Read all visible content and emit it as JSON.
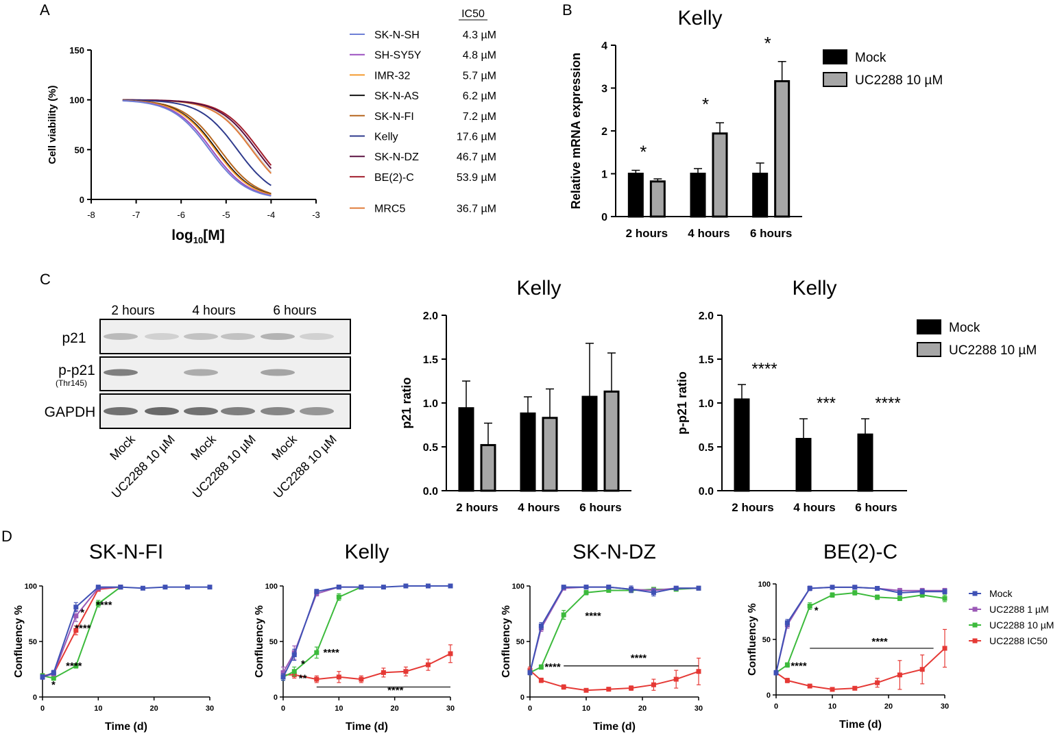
{
  "panel_labels": {
    "a": "A",
    "b": "B",
    "c": "C",
    "d": "D"
  },
  "colors": {
    "mock": "#000000",
    "uc": "#a6a6a6",
    "wb_bg": "#efefef",
    "wb_band": "#5a5a5a"
  },
  "chart_data": [
    {
      "id": "A",
      "type": "line",
      "xlabel_base": "log",
      "xlabel_sub": "10",
      "xlabel_tail": "[M]",
      "ylabel": "Cell viability (%)",
      "xlim": [
        -8,
        -3
      ],
      "ylim": [
        0,
        150
      ],
      "xticks": [
        "-8",
        "-7",
        "-6",
        "-5",
        "-4",
        "-3"
      ],
      "yticks": [
        "0",
        "50",
        "100",
        "150"
      ],
      "x_range": [
        -7.3,
        -4
      ],
      "legend_header": "IC50",
      "series": [
        {
          "name": "SK-N-SH",
          "ic50": "4.3 µM",
          "log_ic50": -5.37,
          "color": "#6d7fd6"
        },
        {
          "name": "SH-SY5Y",
          "ic50": "4.8 µM",
          "log_ic50": -5.32,
          "color": "#9b4fbf"
        },
        {
          "name": "IMR-32",
          "ic50": "5.7 µM",
          "log_ic50": -5.24,
          "color": "#f39a2e"
        },
        {
          "name": "SK-N-AS",
          "ic50": "6.2 µM",
          "log_ic50": -5.21,
          "color": "#111111"
        },
        {
          "name": "SK-N-FI",
          "ic50": "7.2 µM",
          "log_ic50": -5.14,
          "color": "#b5651d"
        },
        {
          "name": "Kelly",
          "ic50": "17.6 µM",
          "log_ic50": -4.75,
          "color": "#2e3a8c"
        },
        {
          "name": "SK-N-DZ",
          "ic50": "46.7 µM",
          "log_ic50": -4.33,
          "color": "#5a1040"
        },
        {
          "name": "BE(2)-C",
          "ic50": "53.9 µM",
          "log_ic50": -4.27,
          "color": "#a11d2b"
        },
        {
          "name": "MRC5",
          "ic50": "36.7 µM",
          "log_ic50": -4.43,
          "color": "#e07b39",
          "gap_before": true
        }
      ],
      "extra_curve": {
        "log_ic50": -4.4,
        "color": "#d4d4d4"
      }
    },
    {
      "id": "B",
      "type": "bar",
      "title": "Kelly",
      "ylabel": "Relative mRNA expression",
      "ylim": [
        0,
        4
      ],
      "yticks": [
        "0",
        "1",
        "2",
        "3",
        "4"
      ],
      "categories": [
        "2 hours",
        "4 hours",
        "6 hours"
      ],
      "series": [
        {
          "name": "Mock",
          "values": [
            1.0,
            1.0,
            1.0
          ],
          "err": [
            0.08,
            0.12,
            0.25
          ]
        },
        {
          "name": "UC2288 10 µM",
          "values": [
            0.82,
            1.94,
            3.16
          ],
          "err": [
            0.06,
            0.25,
            0.46
          ]
        }
      ],
      "annotations": [
        "*",
        "*",
        "*"
      ]
    },
    {
      "id": "C1",
      "type": "bar",
      "title": "Kelly",
      "ylabel": "p21 ratio",
      "ylim": [
        0,
        2.0
      ],
      "yticks": [
        "0.0",
        "0.5",
        "1.0",
        "1.5",
        "2.0"
      ],
      "categories": [
        "2 hours",
        "4 hours",
        "6 hours"
      ],
      "series": [
        {
          "name": "Mock",
          "values": [
            0.94,
            0.88,
            1.07
          ],
          "err": [
            0.31,
            0.19,
            0.61
          ]
        },
        {
          "name": "UC2288 10 µM",
          "values": [
            0.52,
            0.83,
            1.13
          ],
          "err": [
            0.25,
            0.33,
            0.44
          ]
        }
      ]
    },
    {
      "id": "C2",
      "type": "bar",
      "title": "Kelly",
      "ylabel": "p-p21 ratio",
      "ylim": [
        0,
        2.0
      ],
      "yticks": [
        "0.0",
        "0.5",
        "1.0",
        "1.5",
        "2.0"
      ],
      "categories": [
        "2 hours",
        "4 hours",
        "6 hours"
      ],
      "series": [
        {
          "name": "Mock",
          "values": [
            1.04,
            0.59,
            0.64
          ],
          "err": [
            0.17,
            0.23,
            0.18
          ]
        },
        {
          "name": "UC2288 10 µM",
          "values": [
            0,
            0,
            0
          ],
          "err": [
            0,
            0,
            0
          ]
        }
      ],
      "annotations": [
        "****",
        "***",
        "****"
      ]
    },
    {
      "id": "D1",
      "type": "line",
      "title": "SK-N-FI",
      "xlabel": "Time (d)",
      "ylabel": "Confluency %",
      "xlim": [
        0,
        30
      ],
      "ylim": [
        0,
        100
      ],
      "xticks": [
        "0",
        "10",
        "20",
        "30"
      ],
      "yticks": [
        "0",
        "50",
        "100"
      ],
      "series": [
        {
          "name": "Mock",
          "x": [
            0,
            2,
            6,
            10,
            14,
            18,
            22,
            26,
            30
          ],
          "y": [
            18,
            22,
            81,
            99,
            99,
            98,
            99,
            99,
            99
          ],
          "err": [
            2,
            2,
            4,
            1,
            1,
            1,
            1,
            1,
            1
          ]
        },
        {
          "name": "UC2288   1 µM",
          "x": [
            0,
            2,
            6,
            10,
            14
          ],
          "y": [
            18,
            21,
            73,
            98,
            99
          ],
          "err": [
            2,
            2,
            5,
            1,
            1
          ]
        },
        {
          "name": "UC2288  10 µM",
          "x": [
            0,
            2,
            6,
            10,
            14
          ],
          "y": [
            19,
            17,
            28,
            84,
            99
          ],
          "err": [
            2,
            2,
            2,
            3,
            1
          ]
        },
        {
          "name": "UC2288   IC50",
          "x": [
            0,
            2,
            6,
            10,
            14
          ],
          "y": [
            19,
            21,
            60,
            97,
            99
          ],
          "err": [
            2,
            2,
            4,
            1,
            1
          ]
        }
      ],
      "annotations": [
        {
          "text": "*",
          "x": 1.6,
          "y": 8
        },
        {
          "text": "*",
          "x": 6.8,
          "y": 73
        },
        {
          "text": "****",
          "x": 9.6,
          "y": 80
        },
        {
          "text": "****",
          "x": 5.8,
          "y": 59
        },
        {
          "text": "****",
          "x": 4.2,
          "y": 25
        }
      ]
    },
    {
      "id": "D2",
      "type": "line",
      "title": "Kelly",
      "xlabel": "Time (d)",
      "ylabel": "Confluency %",
      "xlim": [
        0,
        30
      ],
      "ylim": [
        0,
        100
      ],
      "xticks": [
        "0",
        "10",
        "20",
        "30"
      ],
      "yticks": [
        "0",
        "50",
        "100"
      ],
      "series": [
        {
          "name": "Mock",
          "x": [
            0,
            2,
            6,
            10,
            14,
            18,
            22,
            26,
            30
          ],
          "y": [
            18,
            38,
            95,
            99,
            99,
            99,
            100,
            100,
            100
          ],
          "err": [
            3,
            5,
            2,
            1,
            1,
            1,
            1,
            1,
            1
          ]
        },
        {
          "name": "UC2288   1 µM",
          "x": [
            0,
            2,
            6,
            10,
            14
          ],
          "y": [
            22,
            40,
            93,
            99,
            99
          ],
          "err": [
            5,
            6,
            2,
            1,
            1
          ]
        },
        {
          "name": "UC2288  10 µM",
          "x": [
            0,
            2,
            6,
            10,
            14
          ],
          "y": [
            18,
            23,
            40,
            90,
            99
          ],
          "err": [
            3,
            4,
            5,
            3,
            1
          ]
        },
        {
          "name": "UC2288   IC50",
          "x": [
            0,
            2,
            6,
            10,
            14,
            18,
            22,
            26,
            30
          ],
          "y": [
            20,
            20,
            16,
            18,
            16,
            22,
            23,
            29,
            39
          ],
          "err": [
            3,
            3,
            3,
            5,
            3,
            4,
            4,
            5,
            8
          ]
        }
      ],
      "annotations": [
        {
          "text": "****",
          "x": 7.2,
          "y": 37
        },
        {
          "text": "*",
          "x": 3.2,
          "y": 27
        },
        {
          "text": "**",
          "x": 2.8,
          "y": 14
        },
        {
          "text": "****",
          "x": 18.7,
          "y": 3
        }
      ],
      "sig_line": {
        "x1": 6,
        "x2": 30,
        "y": 9
      }
    },
    {
      "id": "D3",
      "type": "line",
      "title": "SK-N-DZ",
      "xlabel": "Time (d)",
      "ylabel": "Confluency %",
      "xlim": [
        0,
        30
      ],
      "ylim": [
        0,
        100
      ],
      "xticks": [
        "0",
        "10",
        "20",
        "30"
      ],
      "yticks": [
        "0",
        "50",
        "100"
      ],
      "series": [
        {
          "name": "Mock",
          "x": [
            0,
            2,
            6,
            10,
            14,
            18,
            22,
            26,
            30
          ],
          "y": [
            22,
            64,
            99,
            99,
            99,
            97,
            94,
            98,
            98
          ],
          "err": [
            2,
            3,
            1,
            1,
            1,
            3,
            3,
            1,
            1
          ]
        },
        {
          "name": "UC2288   1 µM",
          "x": [
            0,
            2,
            6,
            10,
            14,
            18,
            22,
            26,
            30
          ],
          "y": [
            22,
            62,
            98,
            99,
            99,
            97,
            96,
            98,
            98
          ],
          "err": [
            2,
            3,
            1,
            1,
            1,
            2,
            2,
            1,
            1
          ]
        },
        {
          "name": "UC2288  10 µM",
          "x": [
            0,
            2,
            6,
            10,
            14,
            18,
            22,
            26,
            30
          ],
          "y": [
            22,
            27,
            74,
            94,
            96,
            96,
            97,
            97,
            98
          ],
          "err": [
            2,
            2,
            4,
            2,
            1,
            1,
            1,
            1,
            1
          ]
        },
        {
          "name": "UC2288   IC50",
          "x": [
            0,
            2,
            6,
            10,
            14,
            18,
            22,
            26,
            30
          ],
          "y": [
            24,
            15,
            9,
            6,
            7,
            8,
            11,
            16,
            23
          ],
          "err": [
            3,
            2,
            2,
            1,
            1,
            2,
            5,
            8,
            12
          ]
        }
      ],
      "annotations": [
        {
          "text": "****",
          "x": 9.8,
          "y": 70
        },
        {
          "text": "****",
          "x": 2.6,
          "y": 24
        },
        {
          "text": "****",
          "x": 17.9,
          "y": 32
        }
      ],
      "sig_line": {
        "x1": 6,
        "x2": 30,
        "y": 28
      }
    },
    {
      "id": "D4",
      "type": "line",
      "title": "BE(2)-C",
      "xlabel": "Time (d)",
      "ylabel": "Confluency %",
      "xlim": [
        0,
        30
      ],
      "ylim": [
        0,
        100
      ],
      "xticks": [
        "0",
        "10",
        "20",
        "30"
      ],
      "yticks": [
        "0",
        "50",
        "100"
      ],
      "series": [
        {
          "name": "Mock",
          "x": [
            0,
            2,
            6,
            10,
            14,
            18,
            22,
            26,
            30
          ],
          "y": [
            20,
            65,
            96,
            97,
            97,
            96,
            92,
            93,
            93
          ],
          "err": [
            2,
            3,
            2,
            1,
            1,
            1,
            2,
            2,
            2
          ]
        },
        {
          "name": "UC2288   1 µM",
          "x": [
            0,
            2,
            6,
            10,
            14,
            18,
            22,
            26,
            30
          ],
          "y": [
            20,
            63,
            96,
            97,
            97,
            96,
            94,
            94,
            94
          ],
          "err": [
            2,
            3,
            2,
            1,
            1,
            1,
            2,
            2,
            2
          ]
        },
        {
          "name": "UC2288  10 µM",
          "x": [
            0,
            2,
            6,
            10,
            14,
            18,
            22,
            26,
            30
          ],
          "y": [
            20,
            27,
            80,
            90,
            92,
            88,
            87,
            90,
            87
          ],
          "err": [
            2,
            2,
            3,
            2,
            2,
            2,
            2,
            2,
            3
          ]
        },
        {
          "name": "UC2288   IC50",
          "x": [
            0,
            2,
            6,
            10,
            14,
            18,
            22,
            26,
            30
          ],
          "y": [
            20,
            13,
            8,
            5,
            6,
            11,
            18,
            23,
            42
          ],
          "err": [
            2,
            2,
            1,
            1,
            1,
            4,
            13,
            13,
            17
          ]
        }
      ],
      "annotations": [
        {
          "text": "*",
          "x": 6.8,
          "y": 73
        },
        {
          "text": "****",
          "x": 2.6,
          "y": 23
        },
        {
          "text": "****",
          "x": 17,
          "y": 45
        }
      ],
      "sig_line": {
        "x1": 6,
        "x2": 28,
        "y": 42
      }
    }
  ],
  "legend_b": {
    "mock": "Mock",
    "uc": "UC2288 10 µM"
  },
  "legend_c": {
    "mock": "Mock",
    "uc": "UC2288 10 µM"
  },
  "legend_d": [
    {
      "name": "Mock",
      "color": "#3f51b5"
    },
    {
      "name": "UC2288   1 µM",
      "color": "#9b59b6"
    },
    {
      "name": "UC2288  10 µM",
      "color": "#3cba3c"
    },
    {
      "name": "UC2288   IC50",
      "color": "#e53935"
    }
  ],
  "western_blot": {
    "time_labels": [
      "2 hours",
      "4 hours",
      "6 hours"
    ],
    "row_labels": [
      "p21",
      "p-p21",
      "GAPDH"
    ],
    "row_sublabel": "(Thr145)",
    "lane_labels": [
      "Mock",
      "UC2288 10 µM",
      "Mock",
      "UC2288 10 µM",
      "Mock",
      "UC2288 10 µM"
    ]
  }
}
